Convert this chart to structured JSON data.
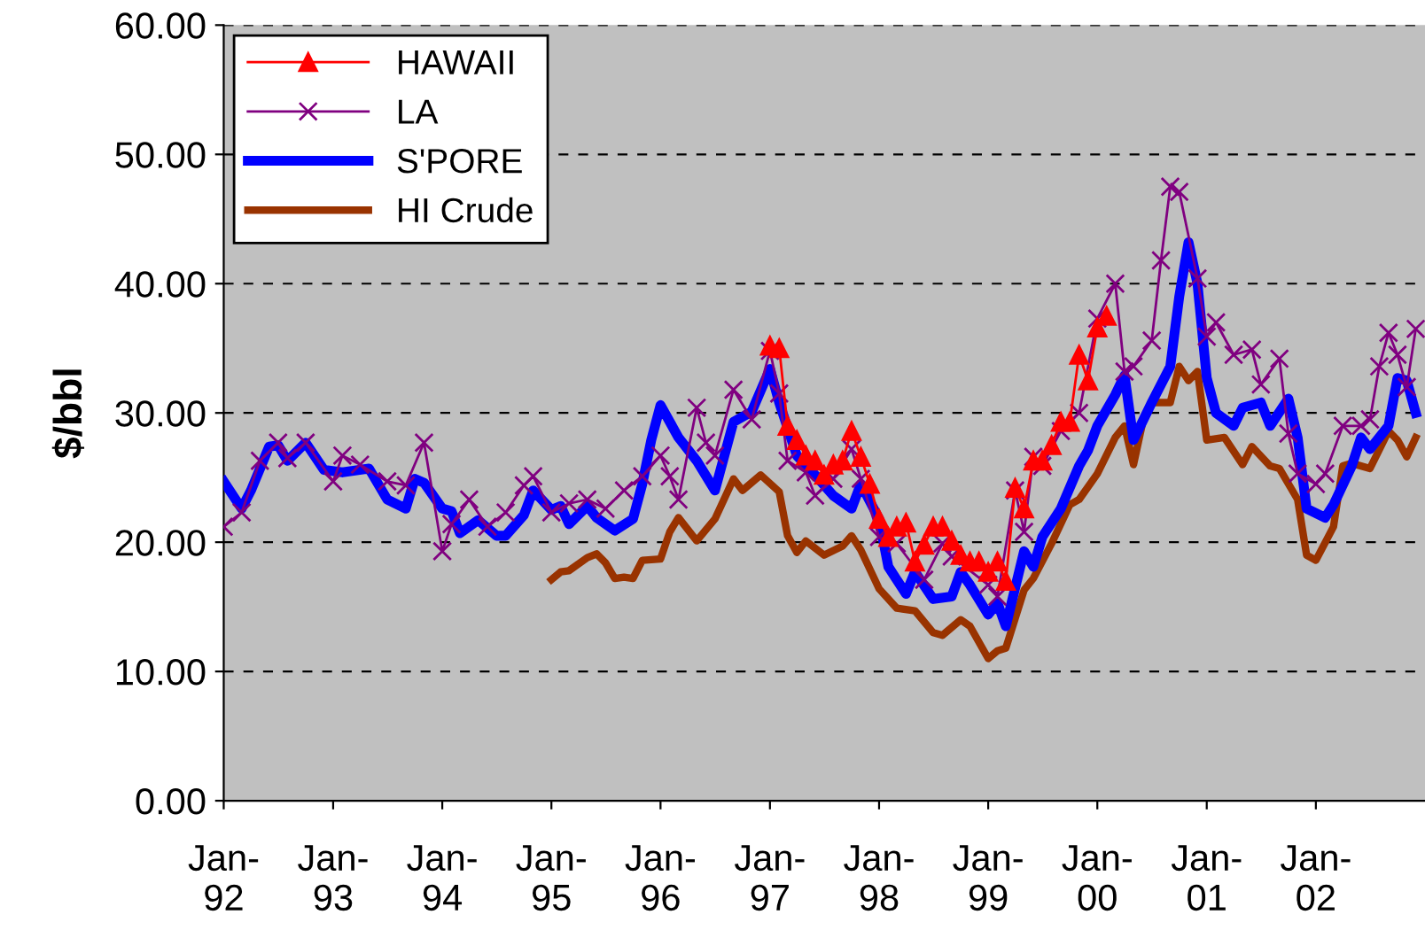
{
  "chart_data": {
    "type": "line",
    "ylabel": "$/bbl",
    "xlim": [
      "1992-01",
      "2003-01"
    ],
    "xticks": [
      {
        "value": "1992-01",
        "label": "Jan-\n92"
      },
      {
        "value": "1993-01",
        "label": "Jan-\n93"
      },
      {
        "value": "1994-01",
        "label": "Jan-\n94"
      },
      {
        "value": "1995-01",
        "label": "Jan-\n95"
      },
      {
        "value": "1996-01",
        "label": "Jan-\n96"
      },
      {
        "value": "1997-01",
        "label": "Jan-\n97"
      },
      {
        "value": "1998-01",
        "label": "Jan-\n98"
      },
      {
        "value": "1999-01",
        "label": "Jan-\n99"
      },
      {
        "value": "2000-01",
        "label": "Jan-\n00"
      },
      {
        "value": "2001-01",
        "label": "Jan-\n01"
      },
      {
        "value": "2002-01",
        "label": "Jan-\n02"
      }
    ],
    "ylim": [
      0,
      60
    ],
    "yticks": [
      {
        "value": 0,
        "label": "0.00"
      },
      {
        "value": 10,
        "label": "10.00"
      },
      {
        "value": 20,
        "label": "20.00"
      },
      {
        "value": 30,
        "label": "30.00"
      },
      {
        "value": 40,
        "label": "40.00"
      },
      {
        "value": 50,
        "label": "50.00"
      },
      {
        "value": 60,
        "label": "60.00"
      }
    ],
    "grid": "y",
    "legend": "top left",
    "series": [
      {
        "name": "HAWAII",
        "color": "#ff0000",
        "marker": "triangle",
        "x": [
          "1997-01",
          "1997-02",
          "1997-03",
          "1997-04",
          "1997-05",
          "1997-06",
          "1997-07",
          "1997-08",
          "1997-09",
          "1997-10",
          "1997-11",
          "1997-12",
          "1998-01",
          "1998-02",
          "1998-03",
          "1998-04",
          "1998-05",
          "1998-06",
          "1998-07",
          "1998-08",
          "1998-09",
          "1998-10",
          "1998-11",
          "1998-12",
          "1999-01",
          "1999-02",
          "1999-03",
          "1999-04",
          "1999-05",
          "1999-06",
          "1999-07",
          "1999-08",
          "1999-09",
          "1999-10",
          "1999-11",
          "1999-12",
          "2000-01",
          "2000-02"
        ],
        "values": [
          35.2,
          35.0,
          29.0,
          27.9,
          26.7,
          26.3,
          25.2,
          26.0,
          26.3,
          28.6,
          26.6,
          24.5,
          21.8,
          20.4,
          21.2,
          21.5,
          18.5,
          19.8,
          21.2,
          21.2,
          20.1,
          19.0,
          18.5,
          18.5,
          17.7,
          18.5,
          17.0,
          24.2,
          22.6,
          26.3,
          26.3,
          27.5,
          29.3,
          29.3,
          34.5,
          32.5,
          36.6,
          37.5
        ]
      },
      {
        "name": "LA",
        "color": "#800080",
        "marker": "cross",
        "x": [
          "1992-01",
          "1992-03",
          "1992-05",
          "1992-07",
          "1992-08",
          "1992-10",
          "1993-01",
          "1993-02",
          "1993-04",
          "1993-07",
          "1993-09",
          "1993-11",
          "1994-01",
          "1994-02",
          "1994-04",
          "1994-06",
          "1994-08",
          "1994-10",
          "1994-11",
          "1995-01",
          "1995-03",
          "1995-05",
          "1995-07",
          "1995-09",
          "1995-11",
          "1996-01",
          "1996-02",
          "1996-03",
          "1996-05",
          "1996-06",
          "1996-07",
          "1996-09",
          "1996-11",
          "1997-01",
          "1997-02",
          "1997-03",
          "1997-05",
          "1997-06",
          "1997-08",
          "1997-10",
          "1997-11",
          "1998-01",
          "1998-03",
          "1998-06",
          "1998-08",
          "1998-09",
          "1999-01",
          "1999-02",
          "1999-04",
          "1999-05",
          "1999-06",
          "1999-07",
          "1999-09",
          "1999-11",
          "2000-01",
          "2000-03",
          "2000-04",
          "2000-05",
          "2000-07",
          "2000-08",
          "2000-09",
          "2000-10",
          "2000-12",
          "2001-01",
          "2001-02",
          "2001-04",
          "2001-06",
          "2001-07",
          "2001-09",
          "2001-10",
          "2001-11",
          "2002-01",
          "2002-02",
          "2002-04",
          "2002-06",
          "2002-07",
          "2002-08",
          "2002-09",
          "2002-10",
          "2002-11",
          "2002-12"
        ],
        "values": [
          21.2,
          22.3,
          26.3,
          27.7,
          26.5,
          27.7,
          24.7,
          26.7,
          26.0,
          24.7,
          24.4,
          27.7,
          19.3,
          21.4,
          23.3,
          21.2,
          22.3,
          24.4,
          25.1,
          22.3,
          23.0,
          23.3,
          22.6,
          24.0,
          25.1,
          26.7,
          25.1,
          23.3,
          30.4,
          27.7,
          26.7,
          31.8,
          29.5,
          34.8,
          31.5,
          26.3,
          25.4,
          23.6,
          24.9,
          27.2,
          24.9,
          20.4,
          19.9,
          17.1,
          19.9,
          18.9,
          16.7,
          15.8,
          24.0,
          20.8,
          26.6,
          25.9,
          28.6,
          30.0,
          37.3,
          40.0,
          33.2,
          33.6,
          35.6,
          41.8,
          47.5,
          47.1,
          40.4,
          35.9,
          37.0,
          34.5,
          34.9,
          32.2,
          34.2,
          28.4,
          25.3,
          24.5,
          25.3,
          29.0,
          29.0,
          29.5,
          33.6,
          36.2,
          34.5,
          32.0,
          36.5
        ]
      },
      {
        "name": "S'PORE",
        "color": "#0000ff",
        "marker": "none",
        "x": [
          "1992-01",
          "1992-03",
          "1992-04",
          "1992-06",
          "1992-07",
          "1992-08",
          "1992-10",
          "1992-12",
          "1993-02",
          "1993-05",
          "1993-07",
          "1993-09",
          "1993-10",
          "1993-11",
          "1994-01",
          "1994-02",
          "1994-03",
          "1994-05",
          "1994-07",
          "1994-08",
          "1994-10",
          "1994-11",
          "1995-01",
          "1995-02",
          "1995-03",
          "1995-05",
          "1995-06",
          "1995-08",
          "1995-10",
          "1995-11",
          "1995-12",
          "1996-01",
          "1996-03",
          "1996-05",
          "1996-07",
          "1996-09",
          "1996-11",
          "1997-01",
          "1997-02",
          "1997-04",
          "1997-06",
          "1997-08",
          "1997-10",
          "1997-11",
          "1998-01",
          "1998-02",
          "1998-04",
          "1998-05",
          "1998-07",
          "1998-09",
          "1998-10",
          "1998-11",
          "1999-01",
          "1999-02",
          "1999-03",
          "1999-05",
          "1999-06",
          "1999-07",
          "1999-09",
          "1999-11",
          "1999-12",
          "2000-01",
          "2000-03",
          "2000-04",
          "2000-05",
          "2000-07",
          "2000-09",
          "2000-10",
          "2000-11",
          "2000-12",
          "2001-01",
          "2001-02",
          "2001-04",
          "2001-05",
          "2001-07",
          "2001-08",
          "2001-10",
          "2001-11",
          "2001-12",
          "2002-02",
          "2002-03",
          "2002-05",
          "2002-06",
          "2002-07",
          "2002-09",
          "2002-10",
          "2002-11",
          "2002-12"
        ],
        "values": [
          24.7,
          22.6,
          24.0,
          27.4,
          27.5,
          26.3,
          27.7,
          25.6,
          25.4,
          25.7,
          23.3,
          22.6,
          24.9,
          24.6,
          22.6,
          22.4,
          20.7,
          21.7,
          20.5,
          20.5,
          22.1,
          24.0,
          22.5,
          22.8,
          21.4,
          22.8,
          21.9,
          20.9,
          21.8,
          24.5,
          27.9,
          30.6,
          28.1,
          26.3,
          24.0,
          29.3,
          30.1,
          33.4,
          30.8,
          26.7,
          25.2,
          23.6,
          22.6,
          24.5,
          21.8,
          18.1,
          16.0,
          17.7,
          15.6,
          15.8,
          17.7,
          16.7,
          14.4,
          15.3,
          13.5,
          19.3,
          18.1,
          20.4,
          22.6,
          25.9,
          27.1,
          29.0,
          31.4,
          32.9,
          27.9,
          30.8,
          33.6,
          39.0,
          43.2,
          40.0,
          32.7,
          30.0,
          29.0,
          30.4,
          30.8,
          29.0,
          31.1,
          28.1,
          22.6,
          21.9,
          22.9,
          25.9,
          28.1,
          27.2,
          29.0,
          32.7,
          32.5,
          30.0
        ]
      },
      {
        "name": "HI Crude",
        "color": "#993300",
        "marker": "none",
        "x": [
          "1995-01",
          "1995-02",
          "1995-03",
          "1995-05",
          "1995-06",
          "1995-07",
          "1995-08",
          "1995-09",
          "1995-10",
          "1995-11",
          "1996-01",
          "1996-02",
          "1996-03",
          "1996-05",
          "1996-07",
          "1996-09",
          "1996-10",
          "1996-12",
          "1997-02",
          "1997-03",
          "1997-04",
          "1997-05",
          "1997-07",
          "1997-09",
          "1997-10",
          "1997-11",
          "1998-01",
          "1998-03",
          "1998-05",
          "1998-07",
          "1998-08",
          "1998-10",
          "1998-11",
          "1999-01",
          "1999-02",
          "1999-03",
          "1999-05",
          "1999-06",
          "1999-08",
          "1999-10",
          "1999-11",
          "2000-01",
          "2000-03",
          "2000-04",
          "2000-05",
          "2000-06",
          "2000-07",
          "2000-09",
          "2000-10",
          "2000-11",
          "2000-12",
          "2001-01",
          "2001-03",
          "2001-05",
          "2001-06",
          "2001-08",
          "2001-09",
          "2001-11",
          "2001-12",
          "2002-01",
          "2002-03",
          "2002-04",
          "2002-05",
          "2002-07",
          "2002-09",
          "2002-10",
          "2002-11",
          "2002-12"
        ],
        "values": [
          17.1,
          17.7,
          17.8,
          18.8,
          19.1,
          18.4,
          17.2,
          17.3,
          17.2,
          18.6,
          18.7,
          20.8,
          21.9,
          20.1,
          21.8,
          24.9,
          24.0,
          25.2,
          23.9,
          20.5,
          19.2,
          20.1,
          19.0,
          19.7,
          20.5,
          19.4,
          16.4,
          14.9,
          14.7,
          13.0,
          12.8,
          14.0,
          13.5,
          11.0,
          11.6,
          11.8,
          16.3,
          17.2,
          19.9,
          22.9,
          23.3,
          25.3,
          28.1,
          29.0,
          26.0,
          29.3,
          30.8,
          30.8,
          33.6,
          32.5,
          33.2,
          27.9,
          28.1,
          26.0,
          27.4,
          25.9,
          25.7,
          23.3,
          19.0,
          18.6,
          21.2,
          25.9,
          26.1,
          25.7,
          28.6,
          27.9,
          26.6,
          28.1
        ]
      }
    ]
  }
}
